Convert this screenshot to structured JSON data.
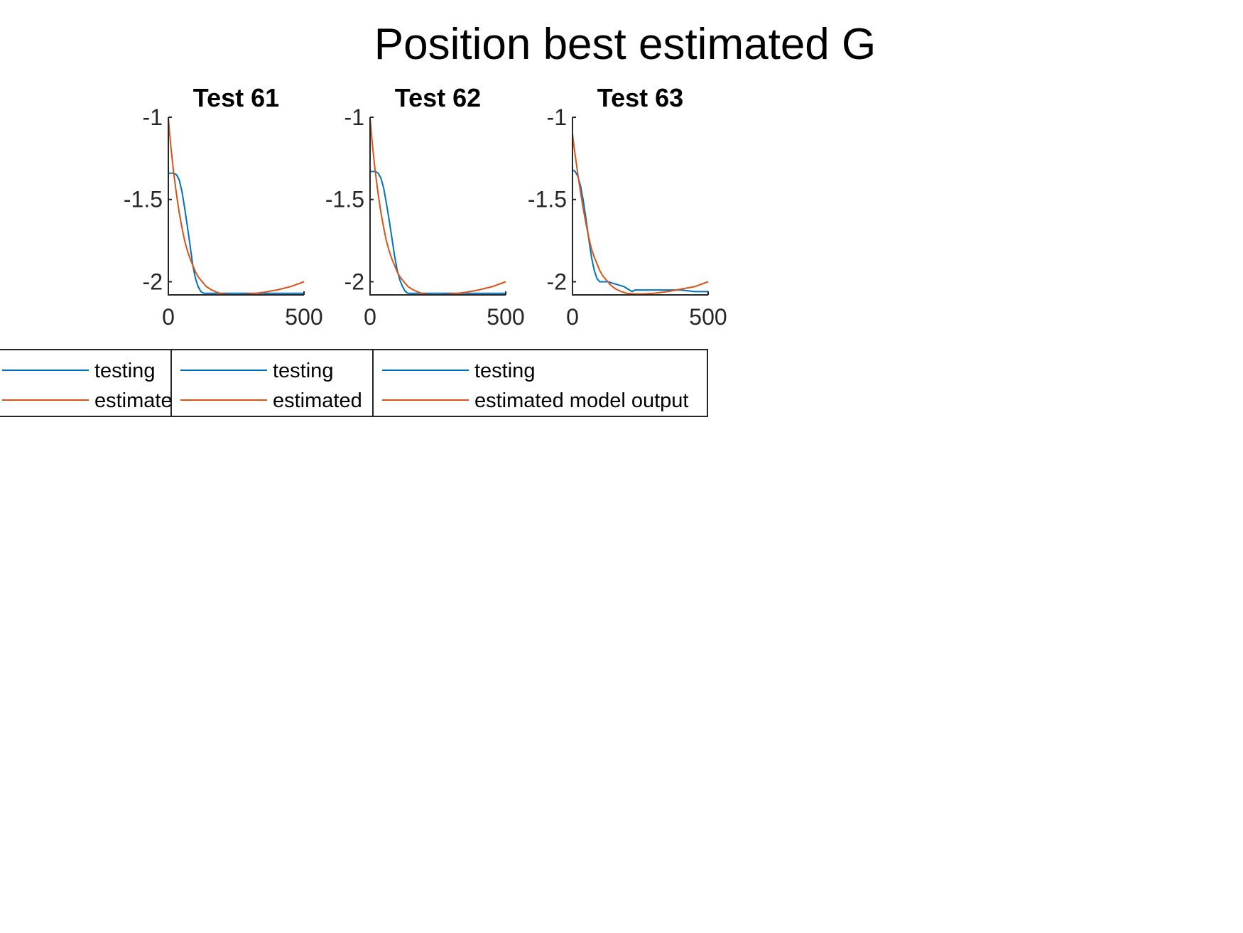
{
  "figure": {
    "title": "Position best estimated G"
  },
  "colors": {
    "testing": "#0072BD",
    "estimated": "#D95319",
    "axis": "#262626"
  },
  "chart_data": [
    {
      "type": "line",
      "title": "Test 61",
      "xlim": [
        0,
        500
      ],
      "ylim": [
        -2.08,
        -1.0
      ],
      "xticks": [
        0,
        500
      ],
      "yticks": [
        -1,
        -1.5,
        -2
      ],
      "xtick_labels": [
        "0",
        "500"
      ],
      "ytick_labels": [
        "-1",
        "-1.5",
        "-2"
      ],
      "series": [
        {
          "name": "testing",
          "x": [
            0,
            10,
            20,
            30,
            40,
            50,
            60,
            70,
            80,
            90,
            100,
            110,
            120,
            130,
            140,
            150,
            170,
            200,
            250,
            300,
            350,
            400,
            450,
            500
          ],
          "y": [
            -1.34,
            -1.34,
            -1.34,
            -1.35,
            -1.38,
            -1.45,
            -1.55,
            -1.66,
            -1.78,
            -1.9,
            -1.98,
            -2.03,
            -2.06,
            -2.07,
            -2.07,
            -2.07,
            -2.07,
            -2.07,
            -2.07,
            -2.07,
            -2.07,
            -2.07,
            -2.07,
            -2.07
          ]
        },
        {
          "name": "estimated",
          "x": [
            0,
            5,
            10,
            20,
            30,
            40,
            50,
            60,
            70,
            80,
            90,
            100,
            110,
            120,
            140,
            160,
            180,
            200,
            230,
            260,
            300,
            350,
            400,
            450,
            500
          ],
          "y": [
            -1.0,
            -1.1,
            -1.19,
            -1.34,
            -1.47,
            -1.58,
            -1.67,
            -1.75,
            -1.81,
            -1.86,
            -1.9,
            -1.94,
            -1.97,
            -1.99,
            -2.03,
            -2.05,
            -2.065,
            -2.075,
            -2.08,
            -2.08,
            -2.075,
            -2.065,
            -2.05,
            -2.03,
            -2.0
          ]
        }
      ],
      "legend": [
        "testing",
        "estimated"
      ]
    },
    {
      "type": "line",
      "title": "Test 62",
      "xlim": [
        0,
        500
      ],
      "ylim": [
        -2.08,
        -1.0
      ],
      "xticks": [
        0,
        500
      ],
      "yticks": [
        -1,
        -1.5,
        -2
      ],
      "xtick_labels": [
        "0",
        "500"
      ],
      "ytick_labels": [
        "-1",
        "-1.5",
        "-2"
      ],
      "series": [
        {
          "name": "testing",
          "x": [
            0,
            10,
            20,
            30,
            40,
            50,
            60,
            70,
            80,
            90,
            100,
            110,
            120,
            130,
            140,
            150,
            170,
            200,
            250,
            300,
            350,
            400,
            450,
            500
          ],
          "y": [
            -1.33,
            -1.33,
            -1.33,
            -1.34,
            -1.37,
            -1.43,
            -1.52,
            -1.62,
            -1.73,
            -1.84,
            -1.93,
            -1.99,
            -2.03,
            -2.06,
            -2.07,
            -2.07,
            -2.07,
            -2.07,
            -2.07,
            -2.07,
            -2.07,
            -2.07,
            -2.07,
            -2.07
          ]
        },
        {
          "name": "estimated",
          "x": [
            0,
            5,
            10,
            20,
            30,
            40,
            50,
            60,
            70,
            80,
            90,
            100,
            110,
            120,
            140,
            160,
            180,
            200,
            230,
            260,
            300,
            350,
            400,
            450,
            500
          ],
          "y": [
            -1.0,
            -1.1,
            -1.19,
            -1.34,
            -1.47,
            -1.58,
            -1.67,
            -1.75,
            -1.81,
            -1.86,
            -1.9,
            -1.94,
            -1.97,
            -1.99,
            -2.03,
            -2.05,
            -2.065,
            -2.075,
            -2.08,
            -2.08,
            -2.075,
            -2.065,
            -2.05,
            -2.03,
            -2.0
          ]
        }
      ],
      "legend": [
        "testing",
        "estimated"
      ]
    },
    {
      "type": "line",
      "title": "Test 63",
      "xlim": [
        0,
        500
      ],
      "ylim": [
        -2.08,
        -1.0
      ],
      "xticks": [
        0,
        500
      ],
      "yticks": [
        -1,
        -1.5,
        -2
      ],
      "xtick_labels": [
        "0",
        "500"
      ],
      "ytick_labels": [
        "-1",
        "-1.5",
        "-2"
      ],
      "series": [
        {
          "name": "testing",
          "x": [
            0,
            10,
            20,
            30,
            40,
            50,
            60,
            70,
            80,
            90,
            100,
            110,
            120,
            130,
            150,
            170,
            190,
            210,
            220,
            230,
            250,
            300,
            350,
            400,
            450,
            500
          ],
          "y": [
            -1.32,
            -1.33,
            -1.36,
            -1.42,
            -1.51,
            -1.62,
            -1.74,
            -1.85,
            -1.93,
            -1.98,
            -2.0,
            -2.0,
            -2.0,
            -2.0,
            -2.01,
            -2.02,
            -2.03,
            -2.05,
            -2.06,
            -2.05,
            -2.05,
            -2.05,
            -2.05,
            -2.05,
            -2.06,
            -2.06
          ]
        },
        {
          "name": "estimated",
          "x": [
            0,
            5,
            10,
            20,
            30,
            40,
            50,
            60,
            70,
            80,
            90,
            100,
            110,
            120,
            140,
            160,
            180,
            200,
            230,
            260,
            300,
            350,
            400,
            450,
            500
          ],
          "y": [
            -1.1,
            -1.17,
            -1.23,
            -1.35,
            -1.46,
            -1.56,
            -1.65,
            -1.73,
            -1.8,
            -1.85,
            -1.89,
            -1.93,
            -1.96,
            -1.98,
            -2.02,
            -2.045,
            -2.06,
            -2.07,
            -2.075,
            -2.075,
            -2.07,
            -2.06,
            -2.045,
            -2.03,
            -2.0
          ]
        }
      ],
      "legend": [
        "testing",
        "estimated model output"
      ]
    }
  ]
}
